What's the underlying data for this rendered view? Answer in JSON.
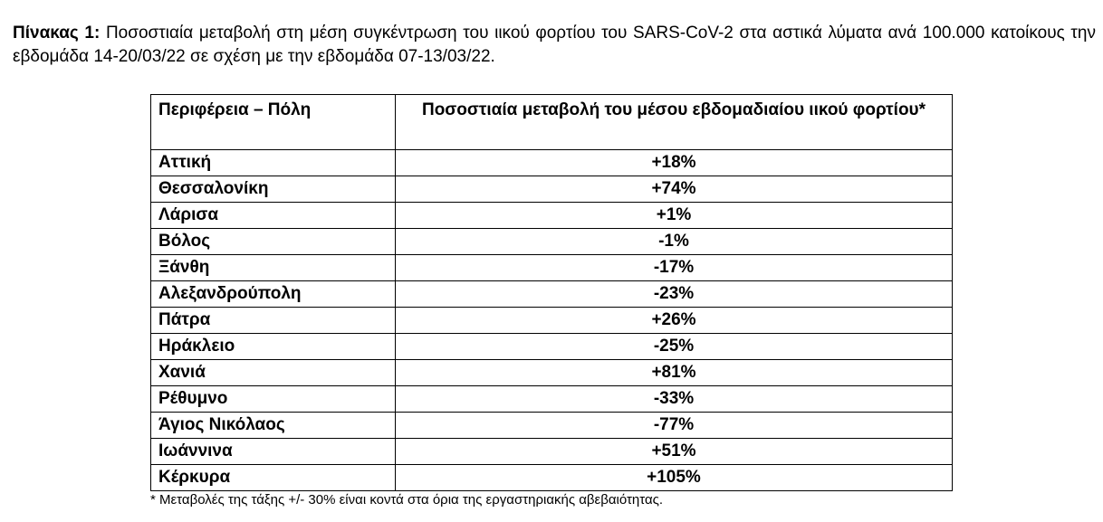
{
  "caption": {
    "label": "Πίνακας 1:",
    "text": " Ποσοστιαία μεταβολή στη μέση συγκέντρωση του ιικού φορτίου του SARS-CoV-2 στα αστικά λύματα ανά 100.000 κατοίκους την εβδομάδα 14-20/03/22 σε σχέση με την εβδομάδα 07-13/03/22."
  },
  "table": {
    "headers": {
      "region": "Περιφέρεια – Πόλη",
      "change": "Ποσοστιαία μεταβολή του μέσου εβδομαδιαίου ιικού φορτίου*"
    },
    "rows": [
      {
        "region": "Αττική",
        "change": "+18%"
      },
      {
        "region": "Θεσσαλονίκη",
        "change": "+74%"
      },
      {
        "region": "Λάρισα",
        "change": "+1%"
      },
      {
        "region": "Βόλος",
        "change": "-1%"
      },
      {
        "region": "Ξάνθη",
        "change": "-17%"
      },
      {
        "region": "Αλεξανδρούπολη",
        "change": "-23%"
      },
      {
        "region": "Πάτρα",
        "change": "+26%"
      },
      {
        "region": "Ηράκλειο",
        "change": "-25%"
      },
      {
        "region": "Χανιά",
        "change": "+81%"
      },
      {
        "region": "Ρέθυμνο",
        "change": "-33%"
      },
      {
        "region": "Άγιος Νικόλαος",
        "change": "-77%"
      },
      {
        "region": "Ιωάννινα",
        "change": "+51%"
      },
      {
        "region": "Κέρκυρα",
        "change": "+105%"
      }
    ]
  },
  "footnote": "* Μεταβολές της τάξης +/- 30% είναι κοντά στα όρια της εργαστηριακής αβεβαιότητας."
}
